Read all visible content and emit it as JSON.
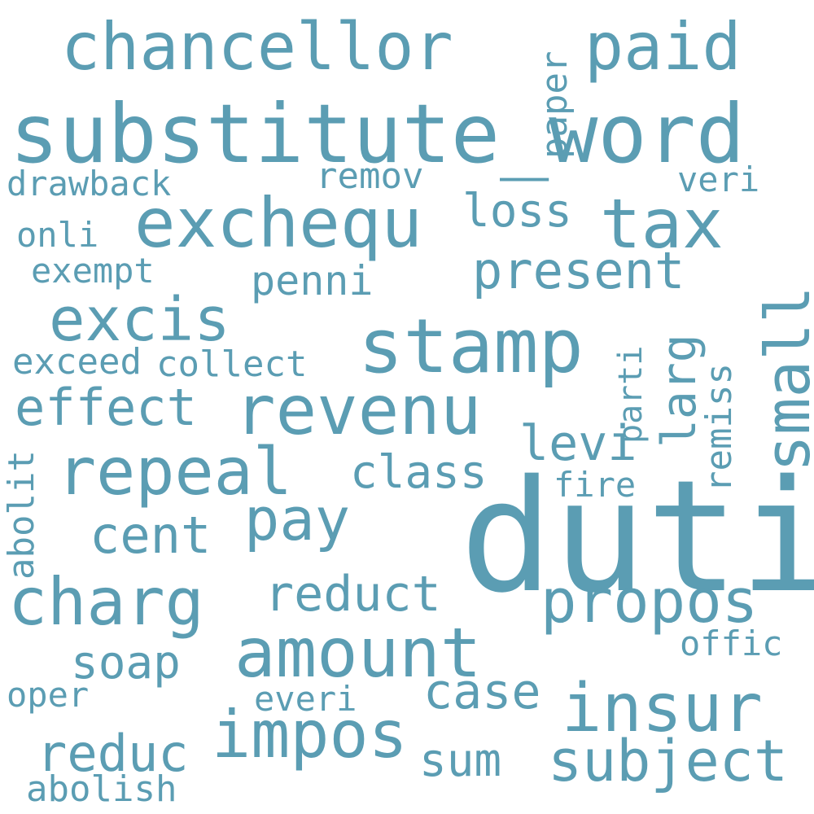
{
  "word_cloud": {
    "color": "#5b9db3",
    "background": "#ffffff",
    "words": [
      {
        "text": "duti",
        "orientation": "horizontal"
      },
      {
        "text": "substitute_word",
        "orientation": "horizontal"
      },
      {
        "text": "stamp",
        "orientation": "horizontal"
      },
      {
        "text": "revenu",
        "orientation": "horizontal"
      },
      {
        "text": "exchequ",
        "orientation": "horizontal"
      },
      {
        "text": "insur",
        "orientation": "horizontal"
      },
      {
        "text": "amount",
        "orientation": "horizontal"
      },
      {
        "text": "chancellor",
        "orientation": "horizontal"
      },
      {
        "text": "repeal",
        "orientation": "horizontal"
      },
      {
        "text": "charg",
        "orientation": "horizontal"
      },
      {
        "text": "impos",
        "orientation": "horizontal"
      },
      {
        "text": "tax",
        "orientation": "horizontal"
      },
      {
        "text": "paid",
        "orientation": "horizontal"
      },
      {
        "text": "excis",
        "orientation": "horizontal"
      },
      {
        "text": "propos",
        "orientation": "horizontal"
      },
      {
        "text": "pay",
        "orientation": "horizontal"
      },
      {
        "text": "subject",
        "orientation": "horizontal"
      },
      {
        "text": "small",
        "orientation": "vertical"
      },
      {
        "text": "present",
        "orientation": "horizontal"
      },
      {
        "text": "effect",
        "orientation": "horizontal"
      },
      {
        "text": "cent",
        "orientation": "horizontal"
      },
      {
        "text": "case",
        "orientation": "horizontal"
      },
      {
        "text": "reduct",
        "orientation": "horizontal"
      },
      {
        "text": "reduc",
        "orientation": "horizontal"
      },
      {
        "text": "loss",
        "orientation": "horizontal"
      },
      {
        "text": "levi",
        "orientation": "horizontal"
      },
      {
        "text": "class",
        "orientation": "horizontal"
      },
      {
        "text": "soap",
        "orientation": "horizontal"
      },
      {
        "text": "sum",
        "orientation": "horizontal"
      },
      {
        "text": "larg",
        "orientation": "vertical"
      },
      {
        "text": "penni",
        "orientation": "horizontal"
      },
      {
        "text": "remov",
        "orientation": "horizontal"
      },
      {
        "text": "exceed",
        "orientation": "horizontal"
      },
      {
        "text": "collect",
        "orientation": "horizontal"
      },
      {
        "text": "drawback",
        "orientation": "horizontal"
      },
      {
        "text": "exempt",
        "orientation": "horizontal"
      },
      {
        "text": "onli",
        "orientation": "horizontal"
      },
      {
        "text": "offic",
        "orientation": "horizontal"
      },
      {
        "text": "abolish",
        "orientation": "horizontal"
      },
      {
        "text": "everi",
        "orientation": "horizontal"
      },
      {
        "text": "oper",
        "orientation": "horizontal"
      },
      {
        "text": "fire",
        "orientation": "horizontal"
      },
      {
        "text": "veri",
        "orientation": "horizontal"
      },
      {
        "text": "remiss",
        "orientation": "vertical"
      },
      {
        "text": "paper",
        "orientation": "vertical"
      },
      {
        "text": "parti",
        "orientation": "vertical"
      },
      {
        "text": "abolit",
        "orientation": "vertical"
      }
    ]
  }
}
